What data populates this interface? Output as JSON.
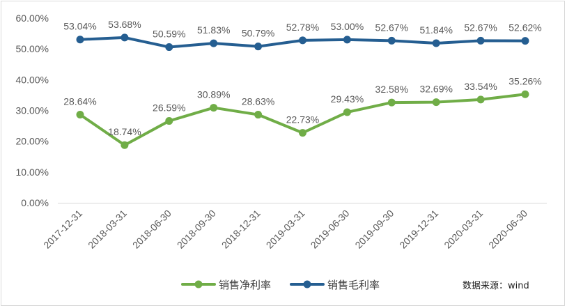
{
  "chart_data": {
    "type": "line",
    "categories": [
      "2017-12-31",
      "2018-03-31",
      "2018-06-30",
      "2018-09-30",
      "2018-12-31",
      "2019-03-31",
      "2019-06-30",
      "2019-09-30",
      "2019-12-31",
      "2020-03-31",
      "2020-06-30"
    ],
    "series": [
      {
        "name": "销售净利率",
        "color": "#70ad47",
        "values": [
          28.64,
          18.74,
          26.59,
          30.89,
          28.63,
          22.73,
          29.43,
          32.58,
          32.69,
          33.54,
          35.26
        ],
        "labels": [
          "28.64%",
          "18.74%",
          "26.59%",
          "30.89%",
          "28.63%",
          "22.73%",
          "29.43%",
          "32.58%",
          "32.69%",
          "33.54%",
          "35.26%"
        ]
      },
      {
        "name": "销售毛利率",
        "color": "#255e91",
        "values": [
          53.04,
          53.68,
          50.59,
          51.83,
          50.79,
          52.78,
          53.0,
          52.67,
          51.84,
          52.67,
          52.62
        ],
        "labels": [
          "53.04%",
          "53.68%",
          "50.59%",
          "51.83%",
          "50.79%",
          "52.78%",
          "53.00%",
          "52.67%",
          "51.84%",
          "52.67%",
          "52.62%"
        ]
      }
    ],
    "ylim": [
      0,
      60
    ],
    "yticks": [
      "0.00%",
      "10.00%",
      "20.00%",
      "30.00%",
      "40.00%",
      "50.00%",
      "60.00%"
    ],
    "ytick_values": [
      0,
      10,
      20,
      30,
      40,
      50,
      60
    ],
    "grid": false,
    "legend_position": "bottom",
    "source": "数据来源：wind"
  }
}
